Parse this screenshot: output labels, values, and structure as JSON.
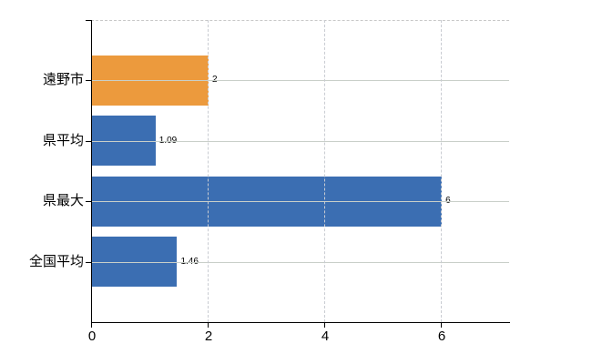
{
  "chart_data": {
    "type": "bar",
    "orientation": "horizontal",
    "title": "",
    "xlabel": "",
    "ylabel": "",
    "categories": [
      "遠野市",
      "県平均",
      "県最大",
      "全国平均"
    ],
    "values": [
      2,
      1.09,
      6,
      1.46
    ],
    "value_labels": [
      "2",
      "1.09",
      "6",
      "1.46"
    ],
    "bar_colors": [
      "#ec9a3d",
      "#3b6eb2",
      "#3b6eb2",
      "#3b6eb2"
    ],
    "xlim": [
      0,
      7.17
    ],
    "x_ticks": [
      0,
      2,
      4,
      6
    ],
    "x_tick_labels": [
      "0",
      "2",
      "4",
      "6"
    ],
    "legend": "none",
    "grid": {
      "horizontal": true,
      "vertical": true,
      "top_border": "dashed"
    }
  },
  "colors": {
    "bar_blue": "#3b6eb2",
    "bar_orange": "#ec9a3d",
    "axis": "#000000",
    "gridline_horizontal": "#c9cfc9",
    "gridline_vertical": "#c9ccd2",
    "top_border": "#c8c8c8",
    "background": "#ffffff",
    "text": "#000000"
  }
}
